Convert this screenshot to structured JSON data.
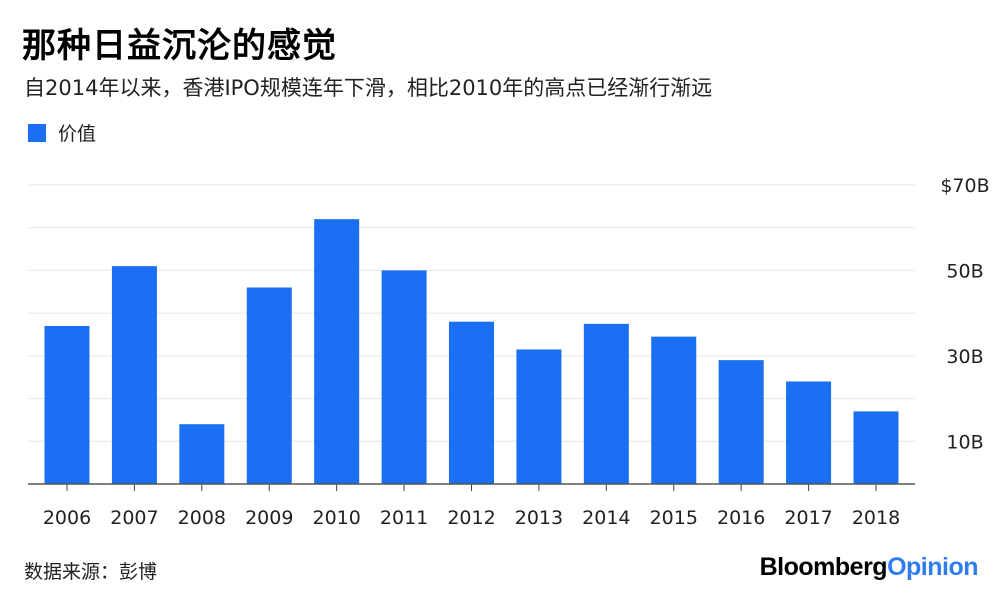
{
  "header": {
    "title": "那种日益沉沦的感觉",
    "subtitle": "自2014年以来，香港IPO规模连年下滑，相比2010年的高点已经渐行渐远"
  },
  "legend": {
    "label": "价值",
    "color": "#1A6FF2"
  },
  "footer": {
    "source": "数据来源：彭博",
    "brand_primary": "Bloomberg",
    "brand_secondary": "Opinion"
  },
  "chart_data": {
    "type": "bar",
    "categories": [
      "2006",
      "2007",
      "2008",
      "2009",
      "2010",
      "2011",
      "2012",
      "2013",
      "2014",
      "2015",
      "2016",
      "2017",
      "2018"
    ],
    "series": [
      {
        "name": "价值",
        "values": [
          37,
          51,
          14,
          46,
          62,
          50,
          38,
          31.5,
          37.5,
          34.5,
          29,
          24,
          17
        ],
        "color": "#1A6FF2"
      }
    ],
    "ylim": [
      0,
      70
    ],
    "yticks": [
      {
        "value": 10,
        "label": "10B"
      },
      {
        "value": 30,
        "label": "30B"
      },
      {
        "value": 50,
        "label": "50B"
      },
      {
        "value": 70,
        "label": "$70B"
      }
    ],
    "grid": true,
    "grid_step": 10,
    "legend_position": "top-left"
  }
}
